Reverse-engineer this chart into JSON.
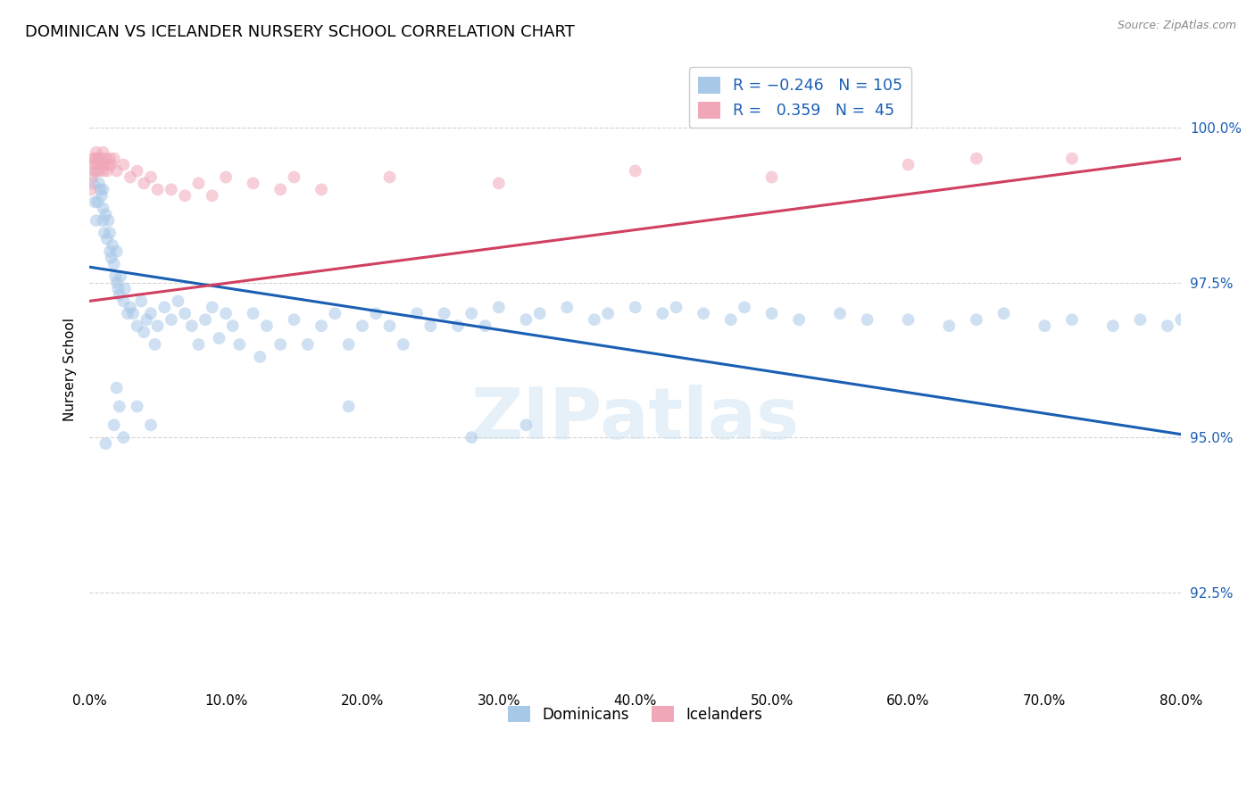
{
  "title": "DOMINICAN VS ICELANDER NURSERY SCHOOL CORRELATION CHART",
  "source": "Source: ZipAtlas.com",
  "ylabel": "Nursery School",
  "yticks": [
    92.5,
    95.0,
    97.5,
    100.0
  ],
  "ytick_labels": [
    "92.5%",
    "95.0%",
    "97.5%",
    "100.0%"
  ],
  "xticks": [
    0.0,
    10.0,
    20.0,
    30.0,
    40.0,
    50.0,
    60.0,
    70.0,
    80.0
  ],
  "xtick_labels": [
    "0.0%",
    "10.0%",
    "20.0%",
    "30.0%",
    "40.0%",
    "50.0%",
    "60.0%",
    "70.0%",
    "80.0%"
  ],
  "xlim": [
    0.0,
    80.0
  ],
  "ylim": [
    91.0,
    101.2
  ],
  "dominicans": {
    "color": "#a8c8e8",
    "x": [
      0.3,
      0.4,
      0.5,
      0.5,
      0.6,
      0.7,
      0.8,
      0.9,
      1.0,
      1.0,
      1.0,
      1.1,
      1.2,
      1.3,
      1.4,
      1.5,
      1.5,
      1.6,
      1.7,
      1.8,
      1.9,
      2.0,
      2.0,
      2.1,
      2.2,
      2.3,
      2.5,
      2.6,
      2.8,
      3.0,
      3.2,
      3.5,
      3.8,
      4.0,
      4.2,
      4.5,
      4.8,
      5.0,
      5.5,
      6.0,
      6.5,
      7.0,
      7.5,
      8.0,
      8.5,
      9.0,
      9.5,
      10.0,
      10.5,
      11.0,
      12.0,
      12.5,
      13.0,
      14.0,
      15.0,
      16.0,
      17.0,
      18.0,
      19.0,
      20.0,
      21.0,
      22.0,
      23.0,
      24.0,
      25.0,
      26.0,
      27.0,
      28.0,
      29.0,
      30.0,
      32.0,
      33.0,
      35.0,
      37.0,
      38.0,
      40.0,
      42.0,
      43.0,
      45.0,
      47.0,
      48.0,
      50.0,
      52.0,
      55.0,
      57.0,
      60.0,
      63.0,
      65.0,
      67.0,
      70.0,
      72.0,
      75.0,
      77.0,
      79.0,
      80.0,
      32.0,
      19.0,
      28.0,
      3.5,
      2.0,
      4.5,
      2.5,
      1.2,
      1.8,
      2.2
    ],
    "y": [
      99.1,
      98.8,
      99.3,
      98.5,
      98.8,
      99.1,
      99.0,
      98.9,
      98.7,
      98.5,
      99.0,
      98.3,
      98.6,
      98.2,
      98.5,
      98.0,
      98.3,
      97.9,
      98.1,
      97.8,
      97.6,
      97.5,
      98.0,
      97.4,
      97.3,
      97.6,
      97.2,
      97.4,
      97.0,
      97.1,
      97.0,
      96.8,
      97.2,
      96.7,
      96.9,
      97.0,
      96.5,
      96.8,
      97.1,
      96.9,
      97.2,
      97.0,
      96.8,
      96.5,
      96.9,
      97.1,
      96.6,
      97.0,
      96.8,
      96.5,
      97.0,
      96.3,
      96.8,
      96.5,
      96.9,
      96.5,
      96.8,
      97.0,
      96.5,
      96.8,
      97.0,
      96.8,
      96.5,
      97.0,
      96.8,
      97.0,
      96.8,
      97.0,
      96.8,
      97.1,
      96.9,
      97.0,
      97.1,
      96.9,
      97.0,
      97.1,
      97.0,
      97.1,
      97.0,
      96.9,
      97.1,
      97.0,
      96.9,
      97.0,
      96.9,
      96.9,
      96.8,
      96.9,
      97.0,
      96.8,
      96.9,
      96.8,
      96.9,
      96.8,
      96.9,
      95.2,
      95.5,
      95.0,
      95.5,
      95.8,
      95.2,
      95.0,
      94.9,
      95.2,
      95.5
    ]
  },
  "icelanders": {
    "color": "#f0a8b8",
    "x": [
      0.1,
      0.2,
      0.3,
      0.3,
      0.4,
      0.4,
      0.5,
      0.5,
      0.6,
      0.7,
      0.7,
      0.8,
      0.9,
      1.0,
      1.0,
      1.1,
      1.2,
      1.3,
      1.4,
      1.5,
      1.6,
      1.8,
      2.0,
      2.5,
      3.0,
      3.5,
      4.0,
      4.5,
      5.0,
      6.0,
      7.0,
      8.0,
      9.0,
      10.0,
      12.0,
      14.0,
      15.0,
      17.0,
      22.0,
      30.0,
      40.0,
      50.0,
      60.0,
      65.0,
      72.0
    ],
    "y": [
      99.0,
      99.2,
      99.4,
      99.5,
      99.3,
      99.5,
      99.4,
      99.6,
      99.5,
      99.3,
      99.5,
      99.4,
      99.5,
      99.3,
      99.6,
      99.4,
      99.5,
      99.3,
      99.4,
      99.5,
      99.4,
      99.5,
      99.3,
      99.4,
      99.2,
      99.3,
      99.1,
      99.2,
      99.0,
      99.0,
      98.9,
      99.1,
      98.9,
      99.2,
      99.1,
      99.0,
      99.2,
      99.0,
      99.2,
      99.1,
      99.3,
      99.2,
      99.4,
      99.5,
      99.5
    ]
  },
  "blue_line": {
    "x0": 0.0,
    "y0": 97.75,
    "x1": 80.0,
    "y1": 95.05
  },
  "pink_line": {
    "x0": 0.0,
    "y0": 97.2,
    "x1": 80.0,
    "y1": 99.5
  },
  "watermark_text": "ZIPatlas",
  "background_color": "#ffffff",
  "dot_size": 100,
  "dot_alpha": 0.55,
  "line_width": 2.2,
  "blue_line_color": "#1a5fb4",
  "pink_line_color": "#d04060",
  "title_fontsize": 13,
  "axis_label_fontsize": 11,
  "tick_fontsize": 11,
  "tick_color": "#1a5fb4",
  "grid_color": "#c8c8c8",
  "grid_alpha": 0.8
}
